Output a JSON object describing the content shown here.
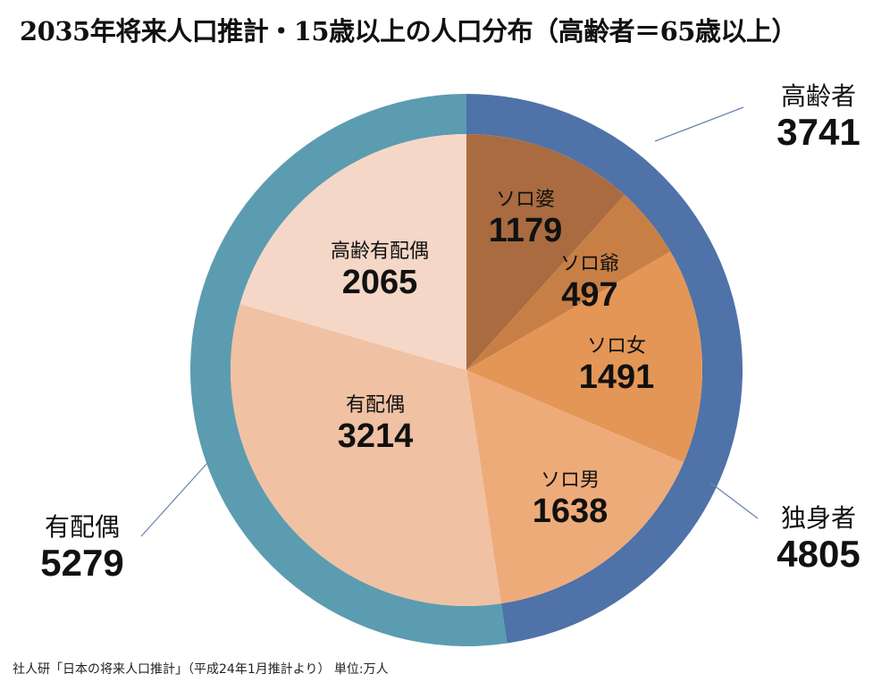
{
  "title": "2035年将来人口推計・15歳以上の人口分布（高齢者＝65歳以上）",
  "footnote": "社人研「日本の将来人口推計」（平成24年1月推計より） 単位:万人",
  "chart_data": {
    "type": "pie",
    "title": "2035年将来人口推計・15歳以上の人口分布（高齢者＝65歳以上）",
    "unit": "万人",
    "inner": [
      {
        "label": "ソロ婆",
        "value": 1179,
        "color": "#a96b3f"
      },
      {
        "label": "ソロ爺",
        "value": 497,
        "color": "#c87f45"
      },
      {
        "label": "ソロ女",
        "value": 1491,
        "color": "#e39656"
      },
      {
        "label": "ソロ男",
        "value": 1638,
        "color": "#eeab7a"
      },
      {
        "label": "有配偶",
        "value": 3214,
        "color": "#f0c1a3"
      },
      {
        "label": "高齢有配偶",
        "value": 2065,
        "color": "#f5d7c7"
      }
    ],
    "outer": [
      {
        "label": "独身者",
        "value": 4805,
        "color": "#4f72a8"
      },
      {
        "label": "有配偶",
        "value": 5279,
        "color": "#5c9cb0"
      }
    ],
    "annotation": {
      "label": "高齢者",
      "value": 3741
    }
  }
}
